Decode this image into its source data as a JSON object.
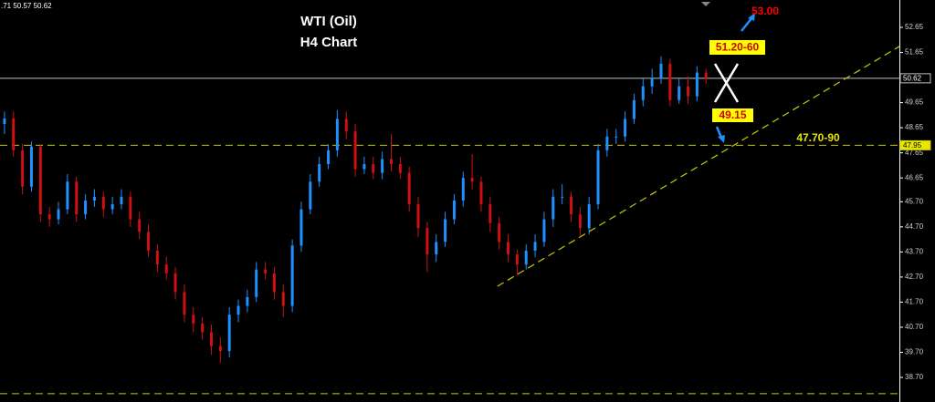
{
  "chart_data": {
    "type": "candlestick",
    "header": ".71 50.57 50.62",
    "title": "WTI (Oil)",
    "subtitle": "H4 Chart",
    "annotations": {
      "target": "53.00",
      "resistance": "51.20-60",
      "support": "49.15",
      "support_zone": "47.70-90"
    },
    "up_color": "#1e90ff",
    "down_color": "#d01010",
    "xlim": [
      0,
      100
    ],
    "ylim": [
      37.72,
      53.74
    ],
    "yticks": [
      52.65,
      51.65,
      49.65,
      48.65,
      47.65,
      46.65,
      {
        "value": 45.7,
        "label": "45.70"
      },
      {
        "value": 44.7,
        "label": "44.70"
      },
      {
        "value": 43.7,
        "label": "43.70"
      },
      {
        "value": 42.7,
        "label": "42.70"
      },
      {
        "value": 41.7,
        "label": "41.70"
      },
      {
        "value": 40.7,
        "label": "40.70"
      },
      {
        "value": 39.7,
        "label": "39.70"
      },
      {
        "value": 38.7,
        "label": "38.70"
      }
    ],
    "open": [
      48.8,
      49.02,
      47.75,
      46.3,
      47.9,
      45.2,
      45.0,
      45.4,
      46.5,
      45.2,
      45.75,
      45.9,
      45.4,
      45.6,
      45.9,
      45.0,
      44.5,
      43.75,
      43.2,
      42.85,
      42.1,
      41.2,
      40.85,
      40.5,
      39.95,
      39.75,
      41.2,
      41.55,
      41.9,
      43.0,
      42.85,
      42.1,
      41.55,
      43.95,
      45.4,
      46.5,
      47.2,
      47.75,
      49.0,
      48.5,
      47.0,
      47.2,
      46.85,
      47.4,
      47.2,
      46.85,
      45.6,
      44.65,
      43.6,
      44.1,
      45.0,
      45.75,
      46.65,
      46.5,
      45.6,
      44.85,
      44.1,
      43.6,
      43.2,
      43.75,
      44.1,
      45.0,
      45.9,
      45.9,
      45.2,
      44.65,
      45.6,
      47.75,
      48.3,
      48.3,
      49.0,
      49.75,
      50.3,
      50.65,
      51.2,
      49.75,
      50.3,
      49.9,
      50.85
    ],
    "high": [
      49.3,
      49.3,
      48.0,
      48.1,
      48.0,
      45.5,
      45.7,
      46.8,
      46.7,
      46.0,
      46.2,
      46.1,
      45.9,
      46.2,
      46.1,
      45.3,
      44.8,
      44.0,
      43.5,
      43.1,
      42.4,
      41.5,
      41.1,
      40.8,
      40.3,
      41.5,
      41.8,
      42.2,
      43.3,
      43.3,
      43.1,
      42.4,
      44.2,
      45.7,
      46.8,
      47.5,
      48.0,
      49.35,
      49.3,
      48.8,
      47.5,
      47.5,
      47.7,
      48.4,
      47.5,
      47.1,
      45.9,
      44.9,
      44.4,
      45.3,
      46.0,
      46.9,
      47.6,
      46.7,
      45.9,
      45.1,
      44.4,
      43.8,
      44.0,
      44.4,
      45.3,
      46.2,
      46.4,
      46.1,
      45.5,
      45.9,
      48.0,
      48.6,
      48.6,
      49.3,
      50.0,
      50.6,
      51.0,
      51.5,
      51.4,
      50.6,
      50.7,
      51.1,
      51.0
    ],
    "low": [
      48.4,
      47.5,
      46.0,
      46.1,
      44.9,
      44.7,
      44.8,
      45.2,
      44.9,
      45.0,
      45.5,
      45.1,
      45.2,
      45.4,
      44.7,
      44.2,
      43.5,
      42.9,
      42.6,
      41.8,
      40.9,
      40.5,
      40.2,
      39.6,
      39.28,
      39.5,
      40.9,
      41.3,
      41.7,
      42.6,
      41.8,
      41.1,
      41.3,
      43.7,
      45.2,
      46.3,
      47.0,
      47.5,
      48.2,
      46.7,
      46.8,
      46.6,
      46.6,
      46.9,
      46.6,
      45.3,
      44.3,
      42.9,
      43.3,
      43.9,
      44.8,
      45.5,
      46.2,
      45.3,
      44.5,
      43.8,
      43.3,
      42.75,
      43.0,
      43.5,
      43.9,
      44.7,
      45.6,
      44.9,
      44.3,
      44.4,
      45.4,
      47.5,
      48.0,
      48.1,
      48.8,
      49.5,
      50.0,
      50.4,
      49.5,
      49.6,
      49.6,
      49.7,
      50.4
    ],
    "close": [
      49.02,
      47.75,
      46.3,
      47.9,
      45.2,
      45.0,
      45.4,
      46.5,
      45.2,
      45.75,
      45.9,
      45.4,
      45.6,
      45.9,
      45.0,
      44.5,
      43.75,
      43.2,
      42.85,
      42.1,
      41.2,
      40.85,
      40.5,
      39.95,
      39.75,
      41.2,
      41.55,
      41.9,
      43.0,
      42.85,
      42.1,
      41.55,
      43.95,
      45.4,
      46.5,
      47.2,
      47.75,
      49.0,
      48.5,
      47.0,
      47.2,
      46.85,
      47.4,
      47.2,
      46.85,
      45.6,
      44.65,
      43.6,
      44.1,
      45.0,
      45.75,
      46.65,
      46.5,
      45.6,
      44.85,
      44.1,
      43.6,
      43.2,
      43.75,
      44.1,
      45.0,
      45.9,
      45.9,
      45.2,
      44.65,
      45.6,
      47.75,
      48.3,
      48.3,
      49.0,
      49.75,
      50.3,
      50.65,
      51.2,
      49.75,
      50.3,
      49.9,
      50.85,
      50.62
    ],
    "hlines": [
      {
        "value": 50.62,
        "color": "#c0c0c0",
        "dashed": false,
        "box_fill": "#000000",
        "box_text": "#ffffff"
      },
      {
        "value": 47.95,
        "color": "#c8c800",
        "dashed": true,
        "box_fill": "#e6e600",
        "box_text": "#000000"
      },
      {
        "value": 38.05,
        "color": "#c8c800",
        "dashed": true
      }
    ],
    "trendline": {
      "x": [
        55.3,
        100
      ],
      "y": [
        42.33,
        51.89
      ],
      "color": "#c8c800"
    }
  }
}
